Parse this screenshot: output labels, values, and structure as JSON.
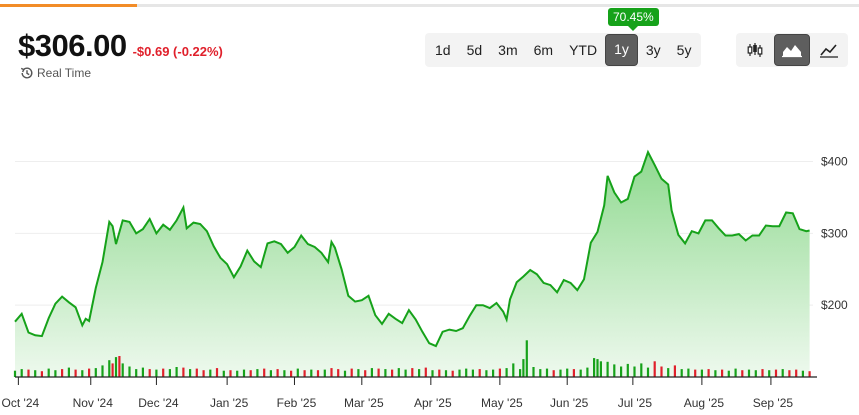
{
  "header": {
    "price": "$306.00",
    "change": "-$0.69 (-0.22%)",
    "realtime_label": "Real Time",
    "realtime_icon": "history-clock-icon"
  },
  "ranges": {
    "items": [
      "1d",
      "5d",
      "3m",
      "6m",
      "YTD",
      "1y",
      "3y",
      "5y"
    ],
    "selected": "1y",
    "gain_badge": "70.45%"
  },
  "chart_types": {
    "items": [
      {
        "name": "candlestick-icon",
        "active": false
      },
      {
        "name": "mountain-area-icon",
        "active": true
      },
      {
        "name": "line-chart-icon",
        "active": false
      }
    ]
  },
  "colors": {
    "accent_bar": "#f28c28",
    "line": "#16a21a",
    "area_top": "#8fd98f",
    "area_bottom": "#eef9ee",
    "up_volume": "#16a21a",
    "down_volume": "#e0202b",
    "negative": "#e0202b",
    "selected_button": "#5e5e5e"
  },
  "chart_data": {
    "type": "area",
    "title": "",
    "xlabel": "",
    "ylabel": "",
    "y_ticks": [
      "$400",
      "$300",
      "$200"
    ],
    "y_tick_values": [
      400,
      300,
      200
    ],
    "ylim": [
      100,
      430
    ],
    "x_ticks": [
      "Oct '24",
      "Nov '24",
      "Dec '24",
      "Jan '25",
      "Feb '25",
      "Mar '25",
      "Apr '25",
      "May '25",
      "Jun '25",
      "Jul '25",
      "Aug '25",
      "Sep '25"
    ],
    "x_tick_positions": [
      1,
      22.5,
      42,
      63,
      83,
      103,
      123.5,
      144,
      164,
      183.5,
      204,
      224.5
    ],
    "x_range": [
      0,
      237
    ],
    "series": [
      {
        "points": [
          [
            0,
            177
          ],
          [
            2,
            188
          ],
          [
            4,
            162
          ],
          [
            6,
            158
          ],
          [
            8,
            157
          ],
          [
            10,
            182
          ],
          [
            12,
            202
          ],
          [
            14,
            212
          ],
          [
            16,
            204
          ],
          [
            18,
            197
          ],
          [
            20,
            172
          ],
          [
            21,
            181
          ],
          [
            22,
            178
          ],
          [
            24,
            224
          ],
          [
            26,
            260
          ],
          [
            28,
            316
          ],
          [
            29,
            310
          ],
          [
            30,
            285
          ],
          [
            32,
            318
          ],
          [
            34,
            316
          ],
          [
            36,
            300
          ],
          [
            38,
            306
          ],
          [
            40,
            320
          ],
          [
            42,
            300
          ],
          [
            44,
            312
          ],
          [
            46,
            305
          ],
          [
            48,
            318
          ],
          [
            50,
            336
          ],
          [
            51,
            307
          ],
          [
            53,
            315
          ],
          [
            55,
            313
          ],
          [
            57,
            303
          ],
          [
            59,
            282
          ],
          [
            61,
            266
          ],
          [
            63,
            257
          ],
          [
            65,
            239
          ],
          [
            67,
            254
          ],
          [
            69,
            276
          ],
          [
            71,
            261
          ],
          [
            73,
            253
          ],
          [
            75,
            286
          ],
          [
            77,
            289
          ],
          [
            79,
            285
          ],
          [
            81,
            273
          ],
          [
            83,
            281
          ],
          [
            85,
            297
          ],
          [
            87,
            285
          ],
          [
            89,
            281
          ],
          [
            91,
            273
          ],
          [
            93,
            260
          ],
          [
            94,
            288
          ],
          [
            95,
            280
          ],
          [
            97,
            250
          ],
          [
            99,
            213
          ],
          [
            101,
            205
          ],
          [
            103,
            207
          ],
          [
            105,
            213
          ],
          [
            107,
            186
          ],
          [
            109,
            174
          ],
          [
            111,
            188
          ],
          [
            113,
            181
          ],
          [
            115,
            175
          ],
          [
            117,
            193
          ],
          [
            119,
            180
          ],
          [
            121,
            163
          ],
          [
            123,
            147
          ],
          [
            125,
            143
          ],
          [
            127,
            163
          ],
          [
            129,
            166
          ],
          [
            131,
            164
          ],
          [
            133,
            168
          ],
          [
            135,
            185
          ],
          [
            137,
            200
          ],
          [
            139,
            200
          ],
          [
            141,
            196
          ],
          [
            143,
            203
          ],
          [
            145,
            191
          ],
          [
            146,
            180
          ],
          [
            147,
            208
          ],
          [
            149,
            232
          ],
          [
            151,
            240
          ],
          [
            153,
            249
          ],
          [
            155,
            243
          ],
          [
            157,
            231
          ],
          [
            159,
            228
          ],
          [
            161,
            218
          ],
          [
            163,
            235
          ],
          [
            165,
            231
          ],
          [
            167,
            221
          ],
          [
            169,
            236
          ],
          [
            171,
            287
          ],
          [
            173,
            302
          ],
          [
            175,
            339
          ],
          [
            176,
            380
          ],
          [
            178,
            357
          ],
          [
            180,
            343
          ],
          [
            182,
            348
          ],
          [
            184,
            379
          ],
          [
            186,
            386
          ],
          [
            188,
            413
          ],
          [
            190,
            395
          ],
          [
            192,
            376
          ],
          [
            194,
            368
          ],
          [
            195,
            332
          ],
          [
            197,
            298
          ],
          [
            199,
            286
          ],
          [
            201,
            303
          ],
          [
            203,
            300
          ],
          [
            205,
            318
          ],
          [
            207,
            318
          ],
          [
            209,
            307
          ],
          [
            211,
            297
          ],
          [
            213,
            297
          ],
          [
            215,
            299
          ],
          [
            217,
            290
          ],
          [
            219,
            297
          ],
          [
            221,
            297
          ],
          [
            223,
            311
          ],
          [
            225,
            310
          ],
          [
            227,
            310
          ],
          [
            229,
            329
          ],
          [
            231,
            328
          ],
          [
            233,
            306
          ],
          [
            235,
            303
          ],
          [
            236,
            304
          ]
        ]
      }
    ],
    "volume": {
      "ylim": [
        0,
        8
      ],
      "bars": [
        [
          0,
          1.2,
          "up"
        ],
        [
          2,
          1.5,
          "up"
        ],
        [
          4,
          1.4,
          "down"
        ],
        [
          6,
          1.3,
          "up"
        ],
        [
          8,
          1.1,
          "down"
        ],
        [
          10,
          1.6,
          "up"
        ],
        [
          12,
          1.3,
          "up"
        ],
        [
          14,
          1.5,
          "down"
        ],
        [
          16,
          1.8,
          "up"
        ],
        [
          18,
          1.4,
          "down"
        ],
        [
          20,
          1.3,
          "up"
        ],
        [
          22,
          1.6,
          "down"
        ],
        [
          24,
          1.7,
          "up"
        ],
        [
          26,
          2.2,
          "up"
        ],
        [
          28,
          3.2,
          "up"
        ],
        [
          29,
          2.6,
          "down"
        ],
        [
          30,
          3.8,
          "up"
        ],
        [
          31,
          4.0,
          "down"
        ],
        [
          32,
          2.6,
          "up"
        ],
        [
          34,
          2.0,
          "up"
        ],
        [
          36,
          1.5,
          "up"
        ],
        [
          38,
          1.8,
          "up"
        ],
        [
          40,
          1.5,
          "down"
        ],
        [
          42,
          1.4,
          "up"
        ],
        [
          44,
          1.6,
          "down"
        ],
        [
          46,
          1.5,
          "up"
        ],
        [
          48,
          1.9,
          "up"
        ],
        [
          50,
          1.8,
          "down"
        ],
        [
          52,
          1.5,
          "up"
        ],
        [
          54,
          1.6,
          "down"
        ],
        [
          56,
          1.3,
          "down"
        ],
        [
          58,
          1.4,
          "up"
        ],
        [
          60,
          1.7,
          "down"
        ],
        [
          62,
          1.2,
          "up"
        ],
        [
          64,
          1.3,
          "down"
        ],
        [
          66,
          1.2,
          "up"
        ],
        [
          68,
          1.4,
          "up"
        ],
        [
          70,
          1.3,
          "down"
        ],
        [
          72,
          1.5,
          "up"
        ],
        [
          74,
          1.6,
          "down"
        ],
        [
          76,
          1.3,
          "up"
        ],
        [
          78,
          1.5,
          "down"
        ],
        [
          80,
          1.3,
          "up"
        ],
        [
          82,
          1.2,
          "down"
        ],
        [
          84,
          1.6,
          "up"
        ],
        [
          86,
          1.3,
          "down"
        ],
        [
          88,
          1.4,
          "up"
        ],
        [
          90,
          1.3,
          "down"
        ],
        [
          92,
          1.4,
          "up"
        ],
        [
          94,
          1.7,
          "down"
        ],
        [
          96,
          1.5,
          "down"
        ],
        [
          98,
          1.2,
          "up"
        ],
        [
          100,
          1.6,
          "down"
        ],
        [
          102,
          1.5,
          "up"
        ],
        [
          104,
          1.3,
          "down"
        ],
        [
          106,
          1.7,
          "up"
        ],
        [
          108,
          1.6,
          "down"
        ],
        [
          110,
          1.5,
          "up"
        ],
        [
          112,
          1.4,
          "down"
        ],
        [
          114,
          1.7,
          "up"
        ],
        [
          116,
          1.4,
          "up"
        ],
        [
          118,
          1.7,
          "down"
        ],
        [
          120,
          1.5,
          "up"
        ],
        [
          122,
          1.8,
          "down"
        ],
        [
          124,
          1.3,
          "up"
        ],
        [
          126,
          1.4,
          "down"
        ],
        [
          128,
          1.3,
          "up"
        ],
        [
          130,
          1.2,
          "down"
        ],
        [
          132,
          1.4,
          "up"
        ],
        [
          134,
          1.6,
          "up"
        ],
        [
          136,
          1.4,
          "up"
        ],
        [
          138,
          1.5,
          "down"
        ],
        [
          140,
          1.3,
          "up"
        ],
        [
          142,
          1.4,
          "up"
        ],
        [
          144,
          1.6,
          "down"
        ],
        [
          146,
          1.7,
          "up"
        ],
        [
          148,
          2.6,
          "up"
        ],
        [
          150,
          1.5,
          "up"
        ],
        [
          151,
          3.4,
          "up"
        ],
        [
          152,
          7.0,
          "up"
        ],
        [
          154,
          1.9,
          "up"
        ],
        [
          156,
          1.5,
          "up"
        ],
        [
          158,
          1.6,
          "up"
        ],
        [
          160,
          1.3,
          "down"
        ],
        [
          162,
          1.4,
          "up"
        ],
        [
          164,
          1.6,
          "up"
        ],
        [
          166,
          1.5,
          "down"
        ],
        [
          168,
          1.4,
          "up"
        ],
        [
          170,
          1.8,
          "up"
        ],
        [
          172,
          3.6,
          "up"
        ],
        [
          173,
          3.4,
          "up"
        ],
        [
          174,
          3.0,
          "up"
        ],
        [
          176,
          2.9,
          "up"
        ],
        [
          178,
          2.4,
          "up"
        ],
        [
          180,
          2.0,
          "up"
        ],
        [
          182,
          2.5,
          "up"
        ],
        [
          184,
          2.0,
          "up"
        ],
        [
          186,
          2.6,
          "up"
        ],
        [
          188,
          1.8,
          "up"
        ],
        [
          190,
          3.0,
          "down"
        ],
        [
          192,
          2.0,
          "down"
        ],
        [
          194,
          1.7,
          "up"
        ],
        [
          196,
          2.2,
          "down"
        ],
        [
          198,
          1.5,
          "up"
        ],
        [
          200,
          1.6,
          "up"
        ],
        [
          202,
          1.4,
          "down"
        ],
        [
          204,
          1.4,
          "up"
        ],
        [
          206,
          1.5,
          "down"
        ],
        [
          208,
          1.3,
          "up"
        ],
        [
          210,
          1.4,
          "down"
        ],
        [
          212,
          1.2,
          "up"
        ],
        [
          214,
          1.6,
          "up"
        ],
        [
          216,
          1.3,
          "down"
        ],
        [
          218,
          1.4,
          "up"
        ],
        [
          220,
          1.3,
          "up"
        ],
        [
          222,
          1.5,
          "down"
        ],
        [
          224,
          1.3,
          "up"
        ],
        [
          226,
          1.4,
          "down"
        ],
        [
          228,
          1.5,
          "up"
        ],
        [
          230,
          1.3,
          "down"
        ],
        [
          232,
          1.4,
          "down"
        ],
        [
          234,
          1.2,
          "up"
        ],
        [
          236,
          1.1,
          "down"
        ]
      ]
    }
  }
}
